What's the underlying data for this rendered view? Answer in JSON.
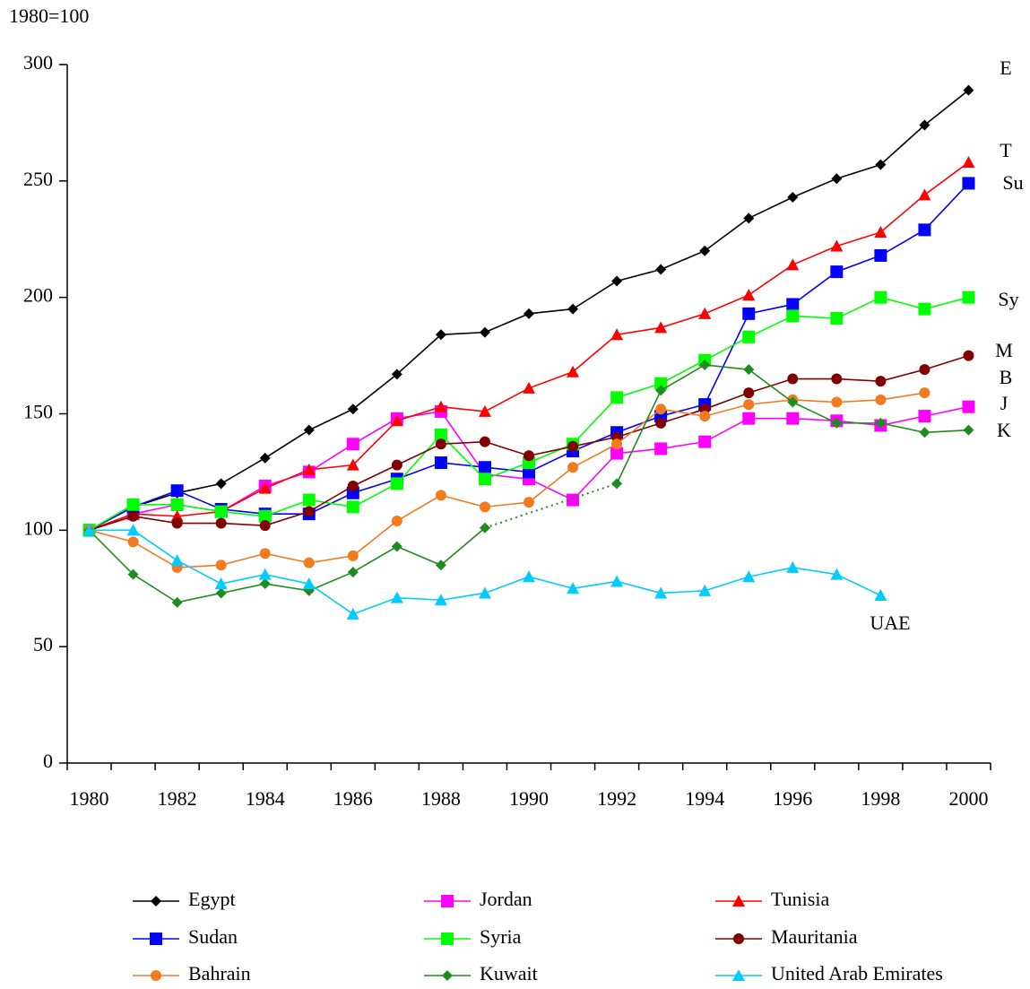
{
  "chart_data": {
    "type": "line",
    "ylabel": "1980=100",
    "categories": [
      "1980",
      null,
      "1982",
      null,
      "1984",
      null,
      "1986",
      null,
      "1988",
      null,
      "1990",
      null,
      "1992",
      null,
      "1994",
      null,
      "1996",
      null,
      "1998",
      null,
      "2000"
    ],
    "ylim": [
      0,
      300
    ],
    "yticks": [
      0,
      50,
      100,
      150,
      200,
      250,
      300
    ],
    "grid": false,
    "legend": "bottom",
    "series": [
      {
        "name": "Egypt",
        "color": "#000000",
        "marker": "diamond",
        "values": [
          100,
          110,
          116,
          120,
          131,
          143,
          152,
          167,
          184,
          185,
          193,
          195,
          207,
          212,
          220,
          234,
          243,
          251,
          257,
          274,
          289
        ]
      },
      {
        "name": "Jordan",
        "color": "#ff00ff",
        "marker": "square",
        "values": [
          100,
          107,
          111,
          108,
          119,
          125,
          137,
          148,
          151,
          124,
          122,
          113,
          133,
          135,
          138,
          148,
          148,
          147,
          145,
          149,
          153
        ]
      },
      {
        "name": "Tunisia",
        "color": "#ff0000",
        "marker": "triangle",
        "values": [
          100,
          107,
          106,
          108,
          118,
          126,
          128,
          147,
          153,
          151,
          161,
          168,
          184,
          187,
          193,
          201,
          214,
          222,
          228,
          244,
          258
        ]
      },
      {
        "name": "Sudan",
        "color": "#0000ff",
        "marker": "square",
        "values": [
          100,
          110,
          117,
          109,
          107,
          107,
          116,
          122,
          129,
          127,
          125,
          134,
          142,
          149,
          154,
          193,
          197,
          211,
          218,
          229,
          249
        ]
      },
      {
        "name": "Syria",
        "color": "#00ff00",
        "marker": "square",
        "values": [
          100,
          111,
          111,
          108,
          106,
          113,
          110,
          120,
          141,
          122,
          129,
          137,
          157,
          163,
          173,
          183,
          192,
          191,
          200,
          195,
          200
        ]
      },
      {
        "name": "Mauritania",
        "color": "#800000",
        "marker": "circle",
        "values": [
          100,
          106,
          103,
          103,
          102,
          108,
          119,
          128,
          137,
          138,
          132,
          136,
          140,
          146,
          152,
          159,
          165,
          165,
          164,
          169,
          175
        ]
      },
      {
        "name": "Bahrain",
        "color": "#f47a20",
        "marker": "circle",
        "values": [
          100,
          95,
          84,
          85,
          90,
          86,
          89,
          104,
          115,
          110,
          112,
          127,
          137,
          152,
          149,
          154,
          156,
          155,
          156,
          159,
          null
        ]
      },
      {
        "name": "Kuwait",
        "color": "#1e8c1e",
        "marker": "diamond",
        "gap_style": "dotted",
        "values": [
          100,
          81,
          69,
          73,
          77,
          74,
          82,
          93,
          85,
          101,
          null,
          null,
          120,
          160,
          171,
          169,
          155,
          146,
          146,
          142,
          143
        ]
      },
      {
        "name": "United Arab Emirates",
        "color": "#00ccff",
        "marker": "triangle",
        "values": [
          100,
          100,
          87,
          77,
          81,
          77,
          64,
          71,
          70,
          73,
          80,
          75,
          78,
          73,
          74,
          80,
          84,
          81,
          72,
          null,
          null
        ]
      }
    ],
    "annotations": [
      "E",
      "T",
      "Su",
      "Sy",
      "M",
      "B",
      "J",
      "K",
      "UAE"
    ]
  }
}
